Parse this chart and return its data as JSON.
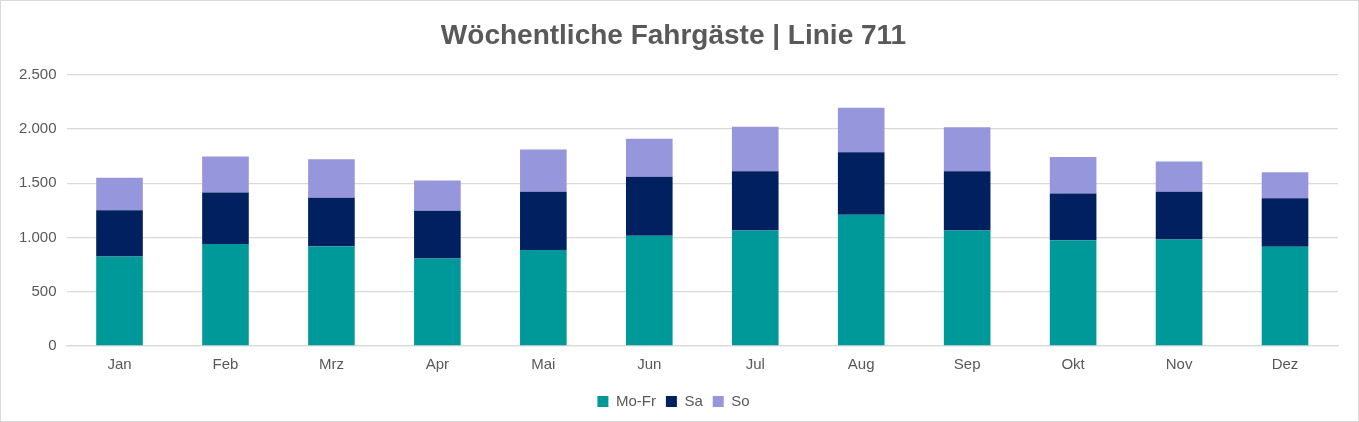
{
  "chart_data": {
    "type": "bar",
    "title": "Wöchentliche Fahrgäste | Linie 711",
    "categories": [
      "Jan",
      "Feb",
      "Mrz",
      "Apr",
      "Mai",
      "Jun",
      "Jul",
      "Aug",
      "Sep",
      "Okt",
      "Nov",
      "Dez"
    ],
    "series": [
      {
        "name": "Mo-Fr",
        "color": "#009999",
        "values": [
          825,
          940,
          920,
          805,
          885,
          1015,
          1065,
          1210,
          1065,
          975,
          980,
          915
        ]
      },
      {
        "name": "Sa",
        "color": "#002060",
        "values": [
          425,
          475,
          445,
          440,
          535,
          545,
          545,
          575,
          545,
          430,
          440,
          445
        ]
      },
      {
        "name": "So",
        "color": "#9696dc",
        "values": [
          300,
          330,
          355,
          280,
          390,
          350,
          410,
          410,
          405,
          335,
          280,
          240
        ]
      }
    ],
    "stacked": true,
    "ylim": [
      0,
      2500
    ],
    "yticks": [
      {
        "value": 0,
        "label": "0"
      },
      {
        "value": 500,
        "label": "500"
      },
      {
        "value": 1000,
        "label": "1.000"
      },
      {
        "value": 1500,
        "label": "1.500"
      },
      {
        "value": 2000,
        "label": "2.000"
      },
      {
        "value": 2500,
        "label": "2.500"
      }
    ],
    "grid": "y",
    "legend": "bottom"
  }
}
